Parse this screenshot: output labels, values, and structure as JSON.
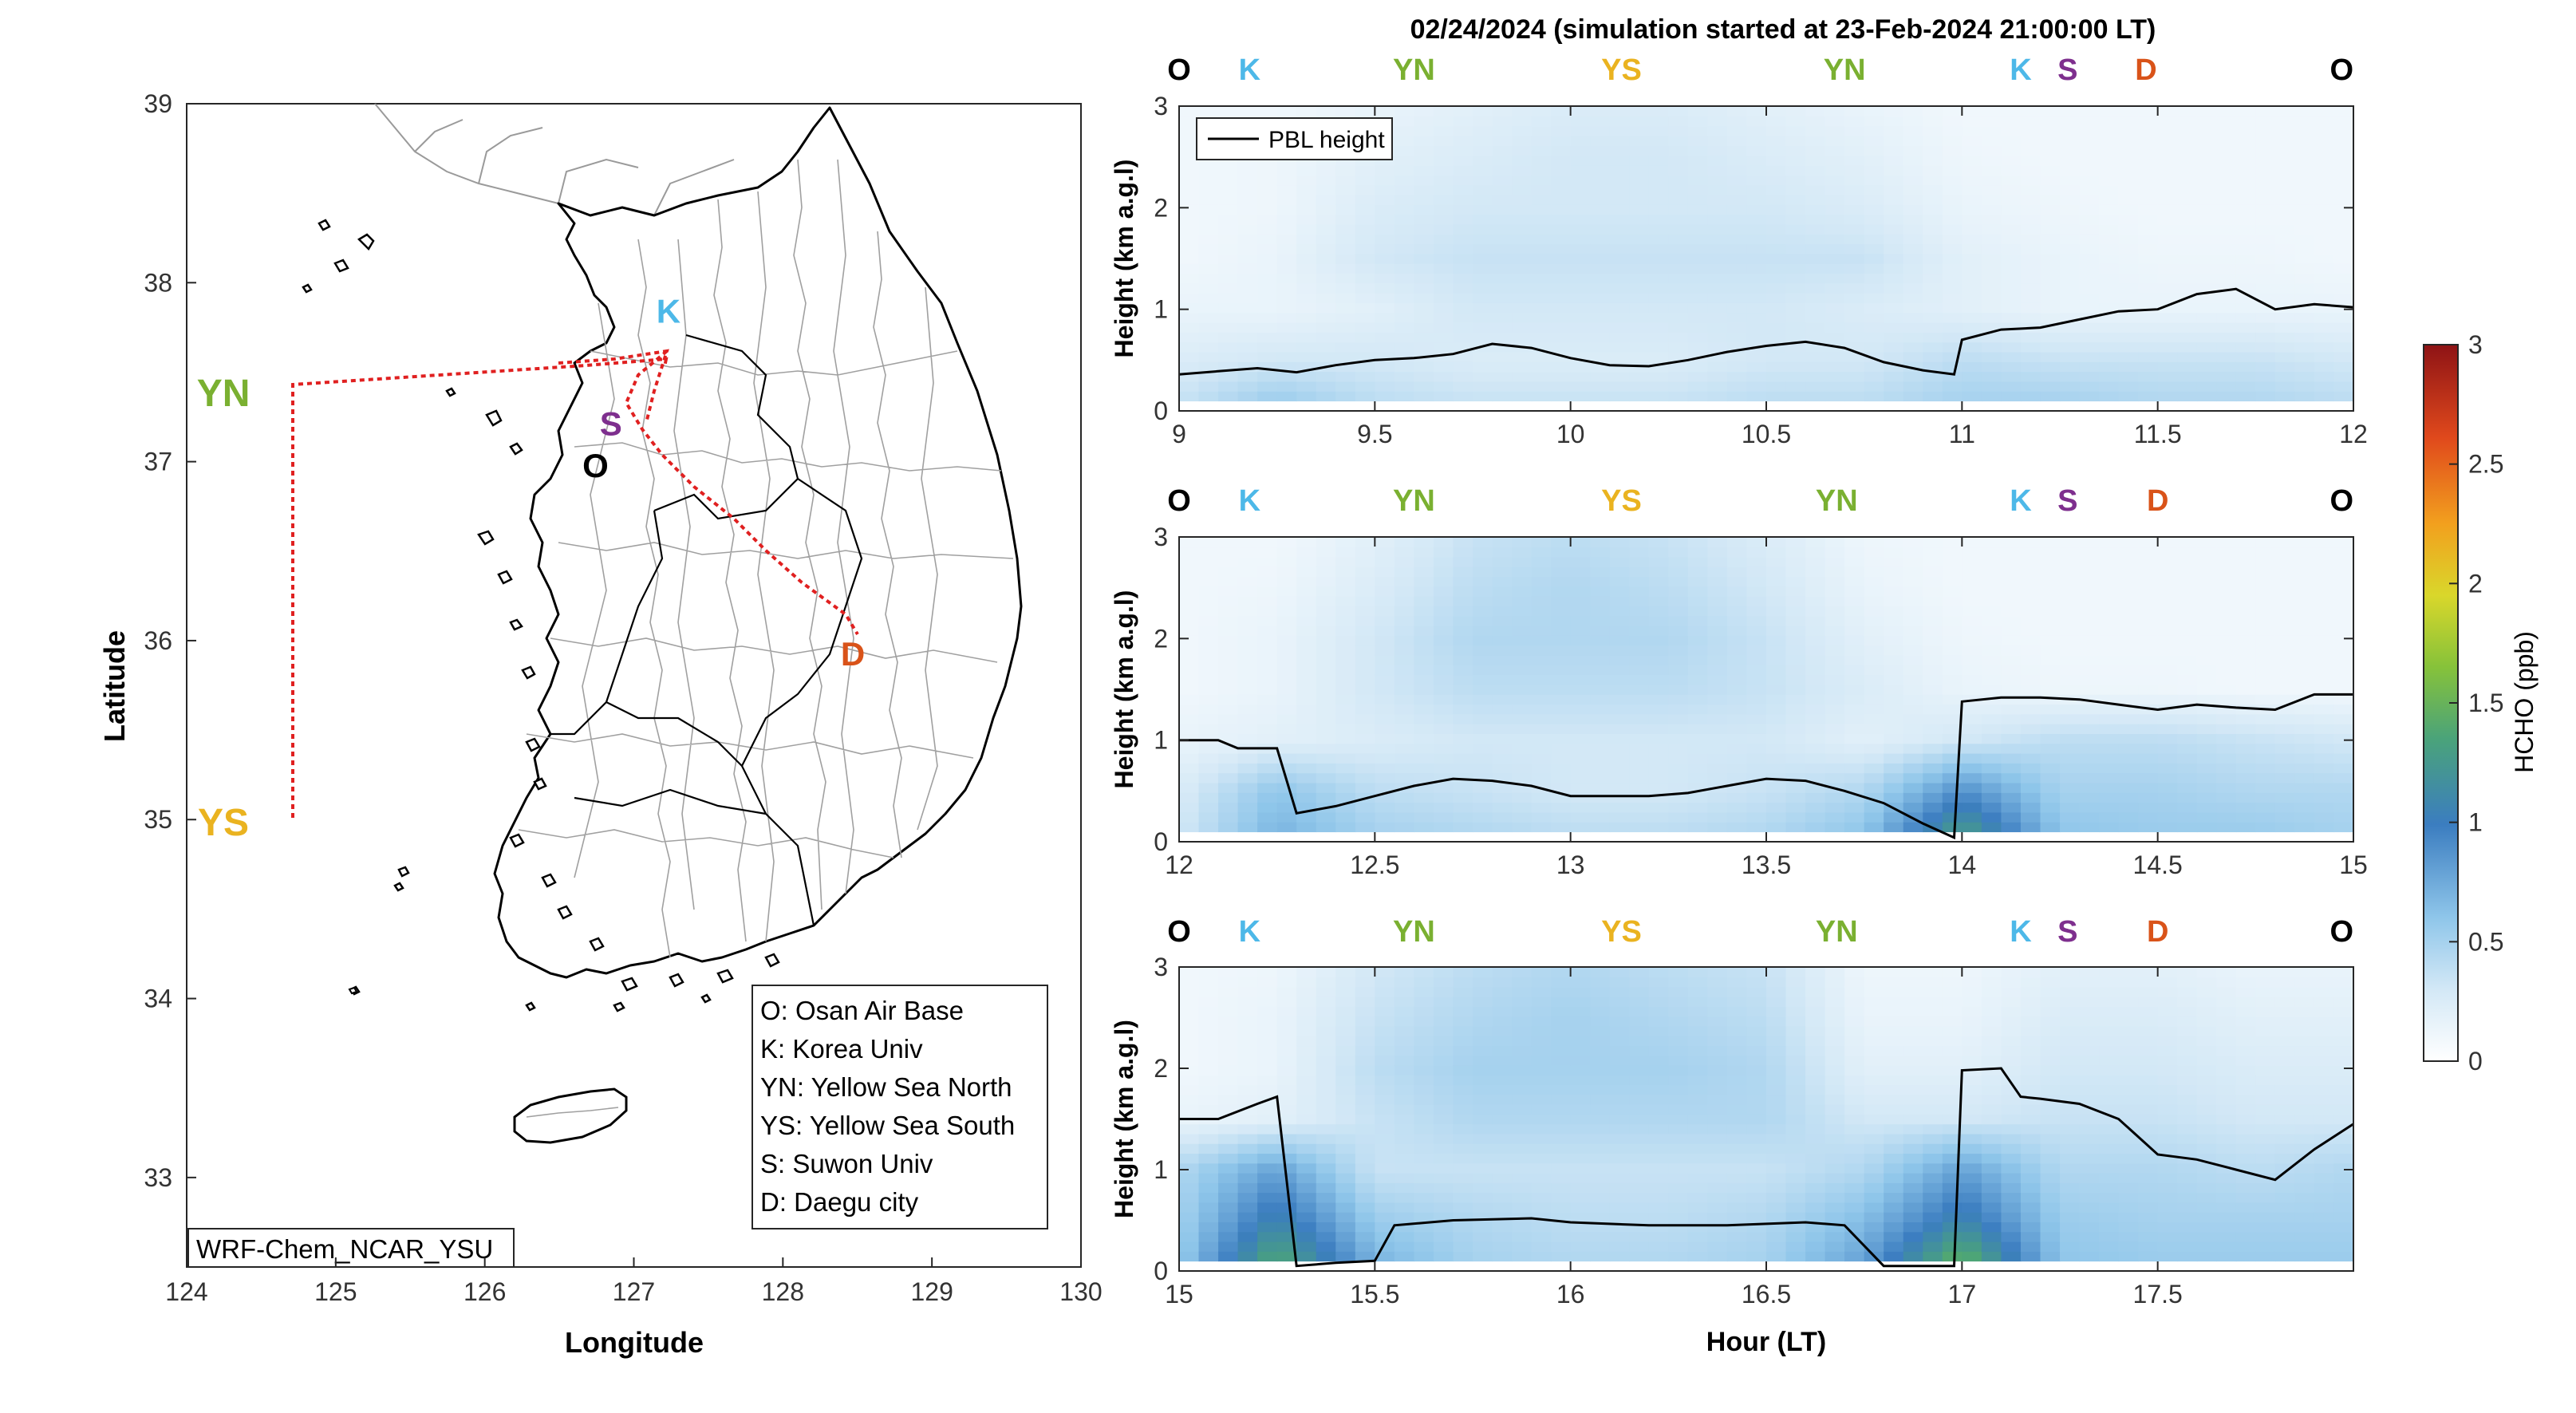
{
  "title": "02/24/2024 (simulation started at 23-Feb-2024 21:00:00 LT)",
  "colors": {
    "O": "#000000",
    "K": "#4db8e8",
    "YN": "#7ab031",
    "YS": "#eab320",
    "S": "#7e2f8e",
    "D": "#d95319",
    "route": "#e02020"
  },
  "chart_data": [
    {
      "type": "map",
      "xlabel": "Longitude",
      "ylabel": "Latitude",
      "xlim": [
        124,
        130
      ],
      "ylim": [
        32.5,
        39
      ],
      "xticks": [
        "124",
        "125",
        "126",
        "127",
        "128",
        "129",
        "130"
      ],
      "yticks": [
        "33",
        "34",
        "35",
        "36",
        "37",
        "38",
        "39"
      ],
      "sites": [
        {
          "code": "K",
          "lon": 127.2,
          "lat": 37.75
        },
        {
          "code": "S",
          "lon": 126.9,
          "lat": 37.3
        },
        {
          "code": "O",
          "lon": 126.85,
          "lat": 37.1
        },
        {
          "code": "YN",
          "lon": 124.3,
          "lat": 37.4
        },
        {
          "code": "YS",
          "lon": 124.3,
          "lat": 35.0
        },
        {
          "code": "D",
          "lon": 128.55,
          "lat": 35.95
        }
      ],
      "legend": [
        "O: Osan Air Base",
        "K: Korea Univ",
        "YN: Yellow Sea North",
        "YS: Yellow Sea South",
        "S: Suwon Univ",
        "D: Daegu city"
      ],
      "annotation": "WRF-Chem_NCAR_YSU"
    },
    {
      "type": "heatmap",
      "ylabel": "Height (km a.g.l)",
      "xlim": [
        9,
        12
      ],
      "ylim": [
        0,
        3
      ],
      "xticks": [
        "9",
        "9.5",
        "10",
        "10.5",
        "11",
        "11.5",
        "12"
      ],
      "yticks": [
        "0",
        "1",
        "2",
        "3"
      ],
      "legend": [
        "PBL height"
      ],
      "site_labels": [
        {
          "t": 9.0,
          "code": "O"
        },
        {
          "t": 9.18,
          "code": "K"
        },
        {
          "t": 9.6,
          "code": "YN"
        },
        {
          "t": 10.13,
          "code": "YS"
        },
        {
          "t": 10.7,
          "code": "YN"
        },
        {
          "t": 11.15,
          "code": "K"
        },
        {
          "t": 11.27,
          "code": "S"
        },
        {
          "t": 11.47,
          "code": "D"
        },
        {
          "t": 11.97,
          "code": "O"
        }
      ],
      "pbl_height_km": [
        [
          9.0,
          0.36
        ],
        [
          9.1,
          0.39
        ],
        [
          9.2,
          0.42
        ],
        [
          9.3,
          0.38
        ],
        [
          9.4,
          0.45
        ],
        [
          9.5,
          0.5
        ],
        [
          9.6,
          0.52
        ],
        [
          9.7,
          0.56
        ],
        [
          9.8,
          0.66
        ],
        [
          9.9,
          0.62
        ],
        [
          10.0,
          0.52
        ],
        [
          10.1,
          0.45
        ],
        [
          10.2,
          0.44
        ],
        [
          10.3,
          0.5
        ],
        [
          10.4,
          0.58
        ],
        [
          10.5,
          0.64
        ],
        [
          10.6,
          0.68
        ],
        [
          10.7,
          0.62
        ],
        [
          10.8,
          0.48
        ],
        [
          10.9,
          0.4
        ],
        [
          10.98,
          0.36
        ],
        [
          11.0,
          0.7
        ],
        [
          11.1,
          0.8
        ],
        [
          11.2,
          0.82
        ],
        [
          11.3,
          0.9
        ],
        [
          11.4,
          0.98
        ],
        [
          11.5,
          1.0
        ],
        [
          11.6,
          1.15
        ],
        [
          11.7,
          1.2
        ],
        [
          11.8,
          1.0
        ],
        [
          11.9,
          1.05
        ],
        [
          12.0,
          1.02
        ]
      ],
      "hcho_ppb": {
        "t": [
          9.0,
          9.25,
          9.5,
          9.75,
          10.0,
          10.25,
          10.5,
          10.75,
          11.0,
          11.25,
          11.5,
          11.75,
          12.0
        ],
        "z": [
          0.1,
          0.5,
          1.0,
          1.5,
          2.0,
          2.5,
          3.0
        ],
        "v": [
          [
            0.35,
            0.55,
            0.4,
            0.35,
            0.35,
            0.35,
            0.4,
            0.4,
            0.5,
            0.5,
            0.45,
            0.45,
            0.4
          ],
          [
            0.25,
            0.3,
            0.3,
            0.25,
            0.25,
            0.25,
            0.3,
            0.3,
            0.4,
            0.35,
            0.35,
            0.35,
            0.3
          ],
          [
            0.15,
            0.15,
            0.2,
            0.3,
            0.3,
            0.3,
            0.3,
            0.25,
            0.2,
            0.15,
            0.15,
            0.15,
            0.15
          ],
          [
            0.1,
            0.15,
            0.3,
            0.35,
            0.35,
            0.35,
            0.35,
            0.35,
            0.2,
            0.15,
            0.12,
            0.12,
            0.1
          ],
          [
            0.1,
            0.12,
            0.25,
            0.3,
            0.3,
            0.3,
            0.3,
            0.25,
            0.15,
            0.12,
            0.1,
            0.1,
            0.1
          ],
          [
            0.1,
            0.12,
            0.2,
            0.25,
            0.3,
            0.3,
            0.25,
            0.2,
            0.12,
            0.1,
            0.1,
            0.1,
            0.1
          ],
          [
            0.1,
            0.1,
            0.15,
            0.2,
            0.25,
            0.25,
            0.2,
            0.15,
            0.1,
            0.1,
            0.1,
            0.1,
            0.1
          ]
        ]
      }
    },
    {
      "type": "heatmap",
      "ylabel": "Height (km a.g.l)",
      "xlim": [
        12,
        15
      ],
      "ylim": [
        0,
        3
      ],
      "xticks": [
        "12",
        "12.5",
        "13",
        "13.5",
        "14",
        "14.5",
        "15"
      ],
      "yticks": [
        "0",
        "1",
        "2",
        "3"
      ],
      "site_labels": [
        {
          "t": 12.0,
          "code": "O"
        },
        {
          "t": 12.18,
          "code": "K"
        },
        {
          "t": 12.6,
          "code": "YN"
        },
        {
          "t": 13.13,
          "code": "YS"
        },
        {
          "t": 13.68,
          "code": "YN"
        },
        {
          "t": 14.15,
          "code": "K"
        },
        {
          "t": 14.27,
          "code": "S"
        },
        {
          "t": 14.5,
          "code": "D"
        },
        {
          "t": 14.97,
          "code": "O"
        }
      ],
      "pbl_height_km": [
        [
          12.0,
          1.0
        ],
        [
          12.1,
          1.0
        ],
        [
          12.15,
          0.92
        ],
        [
          12.25,
          0.92
        ],
        [
          12.3,
          0.28
        ],
        [
          12.4,
          0.35
        ],
        [
          12.5,
          0.45
        ],
        [
          12.6,
          0.55
        ],
        [
          12.7,
          0.62
        ],
        [
          12.8,
          0.6
        ],
        [
          12.9,
          0.55
        ],
        [
          13.0,
          0.45
        ],
        [
          13.1,
          0.45
        ],
        [
          13.2,
          0.45
        ],
        [
          13.3,
          0.48
        ],
        [
          13.4,
          0.55
        ],
        [
          13.5,
          0.62
        ],
        [
          13.6,
          0.6
        ],
        [
          13.7,
          0.5
        ],
        [
          13.8,
          0.38
        ],
        [
          13.9,
          0.18
        ],
        [
          13.98,
          0.04
        ],
        [
          14.0,
          1.38
        ],
        [
          14.1,
          1.42
        ],
        [
          14.2,
          1.42
        ],
        [
          14.3,
          1.4
        ],
        [
          14.4,
          1.35
        ],
        [
          14.5,
          1.3
        ],
        [
          14.6,
          1.35
        ],
        [
          14.7,
          1.32
        ],
        [
          14.8,
          1.3
        ],
        [
          14.9,
          1.45
        ],
        [
          15.0,
          1.45
        ]
      ],
      "hcho_ppb": {
        "t": [
          12.0,
          12.25,
          12.5,
          12.75,
          13.0,
          13.25,
          13.5,
          13.75,
          14.0,
          14.25,
          14.5,
          14.75,
          15.0
        ],
        "z": [
          0.1,
          0.5,
          1.0,
          1.5,
          2.0,
          2.5,
          3.0
        ],
        "v": [
          [
            0.3,
            0.7,
            0.5,
            0.45,
            0.4,
            0.4,
            0.45,
            0.6,
            1.3,
            0.6,
            0.55,
            0.55,
            0.5
          ],
          [
            0.25,
            0.6,
            0.4,
            0.35,
            0.3,
            0.3,
            0.35,
            0.45,
            0.9,
            0.5,
            0.5,
            0.45,
            0.45
          ],
          [
            0.15,
            0.2,
            0.25,
            0.3,
            0.3,
            0.3,
            0.3,
            0.2,
            0.3,
            0.4,
            0.4,
            0.35,
            0.3
          ],
          [
            0.1,
            0.15,
            0.3,
            0.4,
            0.4,
            0.4,
            0.35,
            0.25,
            0.15,
            0.12,
            0.12,
            0.1,
            0.1
          ],
          [
            0.1,
            0.15,
            0.3,
            0.45,
            0.45,
            0.45,
            0.35,
            0.2,
            0.12,
            0.1,
            0.1,
            0.1,
            0.1
          ],
          [
            0.1,
            0.12,
            0.25,
            0.4,
            0.45,
            0.4,
            0.3,
            0.15,
            0.1,
            0.1,
            0.1,
            0.1,
            0.1
          ],
          [
            0.1,
            0.1,
            0.2,
            0.35,
            0.4,
            0.35,
            0.25,
            0.12,
            0.1,
            0.1,
            0.1,
            0.1,
            0.1
          ]
        ]
      }
    },
    {
      "type": "heatmap",
      "xlabel": "Hour (LT)",
      "ylabel": "Height (km a.g.l)",
      "xlim": [
        15,
        18
      ],
      "ylim": [
        0,
        3
      ],
      "xticks": [
        "15",
        "15.5",
        "16",
        "16.5",
        "17",
        "17.5"
      ],
      "yticks": [
        "0",
        "1",
        "2",
        "3"
      ],
      "site_labels": [
        {
          "t": 15.0,
          "code": "O"
        },
        {
          "t": 15.18,
          "code": "K"
        },
        {
          "t": 15.6,
          "code": "YN"
        },
        {
          "t": 16.13,
          "code": "YS"
        },
        {
          "t": 16.68,
          "code": "YN"
        },
        {
          "t": 17.15,
          "code": "K"
        },
        {
          "t": 17.27,
          "code": "S"
        },
        {
          "t": 17.5,
          "code": "D"
        },
        {
          "t": 17.97,
          "code": "O"
        }
      ],
      "pbl_height_km": [
        [
          15.0,
          1.5
        ],
        [
          15.1,
          1.5
        ],
        [
          15.2,
          1.65
        ],
        [
          15.25,
          1.72
        ],
        [
          15.3,
          0.05
        ],
        [
          15.4,
          0.08
        ],
        [
          15.5,
          0.1
        ],
        [
          15.55,
          0.45
        ],
        [
          15.7,
          0.5
        ],
        [
          15.9,
          0.52
        ],
        [
          16.0,
          0.48
        ],
        [
          16.2,
          0.45
        ],
        [
          16.4,
          0.45
        ],
        [
          16.6,
          0.48
        ],
        [
          16.7,
          0.45
        ],
        [
          16.8,
          0.05
        ],
        [
          16.98,
          0.05
        ],
        [
          17.0,
          1.98
        ],
        [
          17.1,
          2.0
        ],
        [
          17.15,
          1.72
        ],
        [
          17.2,
          1.7
        ],
        [
          17.3,
          1.65
        ],
        [
          17.4,
          1.5
        ],
        [
          17.5,
          1.15
        ],
        [
          17.6,
          1.1
        ],
        [
          17.7,
          1.0
        ],
        [
          17.8,
          0.9
        ],
        [
          17.9,
          1.2
        ],
        [
          18.0,
          1.45
        ]
      ],
      "hcho_ppb": {
        "t": [
          15.0,
          15.25,
          15.5,
          15.75,
          16.0,
          16.25,
          16.5,
          16.75,
          17.0,
          17.25,
          17.5,
          17.75,
          18.0
        ],
        "z": [
          0.1,
          0.5,
          1.0,
          1.5,
          2.0,
          2.5,
          3.0
        ],
        "v": [
          [
            0.55,
            1.4,
            0.7,
            0.5,
            0.45,
            0.45,
            0.5,
            0.8,
            1.5,
            0.6,
            0.55,
            0.55,
            0.55
          ],
          [
            0.5,
            1.1,
            0.55,
            0.45,
            0.4,
            0.4,
            0.45,
            0.65,
            1.1,
            0.55,
            0.5,
            0.5,
            0.5
          ],
          [
            0.45,
            0.8,
            0.35,
            0.35,
            0.35,
            0.35,
            0.35,
            0.45,
            0.8,
            0.45,
            0.45,
            0.4,
            0.45
          ],
          [
            0.15,
            0.2,
            0.35,
            0.45,
            0.45,
            0.45,
            0.45,
            0.3,
            0.3,
            0.35,
            0.35,
            0.3,
            0.3
          ],
          [
            0.1,
            0.15,
            0.4,
            0.5,
            0.5,
            0.5,
            0.45,
            0.2,
            0.2,
            0.3,
            0.3,
            0.25,
            0.25
          ],
          [
            0.1,
            0.15,
            0.35,
            0.45,
            0.5,
            0.45,
            0.4,
            0.15,
            0.15,
            0.25,
            0.25,
            0.2,
            0.2
          ],
          [
            0.1,
            0.12,
            0.3,
            0.4,
            0.45,
            0.4,
            0.35,
            0.12,
            0.12,
            0.2,
            0.2,
            0.15,
            0.15
          ]
        ]
      }
    }
  ],
  "colorbar": {
    "label": "HCHO (ppb)",
    "ticks": [
      "0",
      "0.5",
      "1",
      "1.5",
      "2",
      "2.5",
      "3"
    ],
    "min": 0,
    "max": 3
  }
}
